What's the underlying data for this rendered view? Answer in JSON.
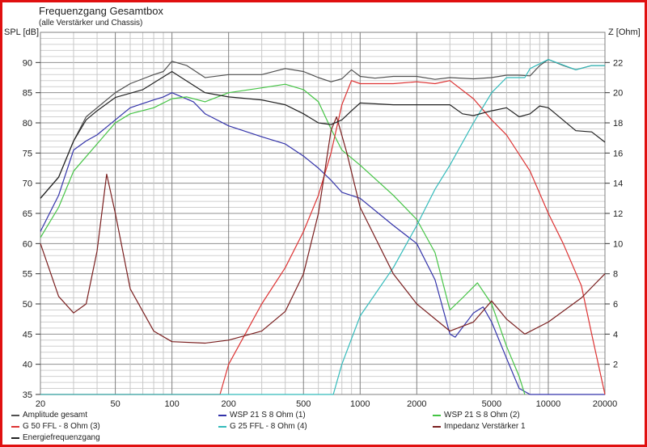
{
  "title": "Frequenzgang Gesamtbox",
  "subtitle": "(alle Verstärker und Chassis)",
  "chart_data": {
    "type": "line",
    "title": "Frequenzgang Gesamtbox",
    "subtitle": "(alle Verstärker und Chassis)",
    "xlabel": "",
    "ylabel": "SPL [dB]",
    "y2label": "Z [Ohm]",
    "xscale": "log",
    "xlim": [
      20,
      20000
    ],
    "ylim": [
      35,
      95
    ],
    "y2lim": [
      0,
      24
    ],
    "xticks": [
      20,
      50,
      100,
      200,
      500,
      1000,
      2000,
      5000,
      10000,
      20000
    ],
    "yticks": [
      35,
      40,
      45,
      50,
      55,
      60,
      65,
      70,
      75,
      80,
      85,
      90
    ],
    "y2ticks": [
      2,
      4,
      6,
      8,
      10,
      12,
      14,
      16,
      18,
      20,
      22
    ],
    "grid": true,
    "legend_position": "bottom",
    "series": [
      {
        "name": "Amplitude gesamt",
        "color": "#505050",
        "axis": "left",
        "points": [
          [
            20,
            67.5
          ],
          [
            25,
            71
          ],
          [
            30,
            77
          ],
          [
            35,
            81
          ],
          [
            40,
            82.5
          ],
          [
            50,
            85
          ],
          [
            60,
            86.5
          ],
          [
            70,
            87.3
          ],
          [
            80,
            88
          ],
          [
            90,
            88.5
          ],
          [
            100,
            90.2
          ],
          [
            120,
            89.5
          ],
          [
            150,
            87.5
          ],
          [
            200,
            88
          ],
          [
            300,
            88
          ],
          [
            400,
            89
          ],
          [
            500,
            88.5
          ],
          [
            600,
            87.5
          ],
          [
            700,
            86.8
          ],
          [
            800,
            87.3
          ],
          [
            900,
            88.8
          ],
          [
            1000,
            87.7
          ],
          [
            1200,
            87.4
          ],
          [
            1500,
            87.7
          ],
          [
            2000,
            87.7
          ],
          [
            2500,
            87.2
          ],
          [
            3000,
            87.5
          ],
          [
            4000,
            87.3
          ],
          [
            5000,
            87.5
          ],
          [
            6000,
            87.9
          ],
          [
            7000,
            87.9
          ],
          [
            8000,
            87.8
          ],
          [
            9000,
            89.5
          ],
          [
            10000,
            90.5
          ],
          [
            12000,
            89.5
          ],
          [
            14000,
            88.8
          ],
          [
            17000,
            89.5
          ],
          [
            20000,
            89.5
          ]
        ]
      },
      {
        "name": "WSP 21 S 8 Ohm (1)",
        "color": "#3333aa",
        "axis": "left",
        "points": [
          [
            20,
            62
          ],
          [
            25,
            68
          ],
          [
            30,
            75.5
          ],
          [
            35,
            77
          ],
          [
            40,
            78
          ],
          [
            50,
            80.5
          ],
          [
            60,
            82.5
          ],
          [
            70,
            83.2
          ],
          [
            80,
            83.8
          ],
          [
            90,
            84.3
          ],
          [
            100,
            85
          ],
          [
            130,
            83.5
          ],
          [
            150,
            81.5
          ],
          [
            200,
            79.5
          ],
          [
            300,
            77.7
          ],
          [
            400,
            76.5
          ],
          [
            500,
            74.5
          ],
          [
            600,
            72.5
          ],
          [
            700,
            70.5
          ],
          [
            800,
            68.5
          ],
          [
            1000,
            67.5
          ],
          [
            1500,
            63
          ],
          [
            2000,
            60
          ],
          [
            2500,
            54
          ],
          [
            3000,
            45
          ],
          [
            3200,
            44.5
          ],
          [
            4000,
            48.5
          ],
          [
            4500,
            49.5
          ],
          [
            5000,
            47
          ],
          [
            6000,
            41
          ],
          [
            7000,
            36
          ],
          [
            8000,
            35
          ],
          [
            20000,
            35
          ]
        ]
      },
      {
        "name": "WSP 21 S 8 Ohm (2)",
        "color": "#44c444",
        "axis": "left",
        "points": [
          [
            20,
            61
          ],
          [
            25,
            66
          ],
          [
            30,
            72
          ],
          [
            40,
            76.5
          ],
          [
            50,
            80
          ],
          [
            60,
            81.5
          ],
          [
            80,
            82.5
          ],
          [
            100,
            84
          ],
          [
            120,
            84.3
          ],
          [
            150,
            83.5
          ],
          [
            200,
            85
          ],
          [
            300,
            85.8
          ],
          [
            400,
            86.4
          ],
          [
            500,
            85.5
          ],
          [
            600,
            83.5
          ],
          [
            700,
            79
          ],
          [
            800,
            75.5
          ],
          [
            1000,
            73
          ],
          [
            1500,
            68
          ],
          [
            2000,
            64
          ],
          [
            2500,
            58.5
          ],
          [
            3000,
            49
          ],
          [
            3500,
            51
          ],
          [
            4200,
            53.5
          ],
          [
            5000,
            50
          ],
          [
            6000,
            43
          ],
          [
            7000,
            38
          ],
          [
            7500,
            35
          ]
        ]
      },
      {
        "name": "G 50 FFL - 8 Ohm (3)",
        "color": "#dd3333",
        "axis": "left",
        "points": [
          [
            20,
            35
          ],
          [
            180,
            35
          ],
          [
            200,
            40
          ],
          [
            300,
            50
          ],
          [
            400,
            56
          ],
          [
            500,
            62
          ],
          [
            600,
            68
          ],
          [
            700,
            75
          ],
          [
            800,
            83
          ],
          [
            900,
            87
          ],
          [
            1000,
            86.5
          ],
          [
            1500,
            86.5
          ],
          [
            2000,
            86.8
          ],
          [
            2500,
            86.5
          ],
          [
            3000,
            87
          ],
          [
            4000,
            84
          ],
          [
            5000,
            80.5
          ],
          [
            6000,
            78
          ],
          [
            8000,
            72
          ],
          [
            10000,
            65
          ],
          [
            12000,
            60
          ],
          [
            15000,
            53
          ],
          [
            17000,
            45
          ],
          [
            20000,
            35
          ]
        ]
      },
      {
        "name": "G 25 FFL - 8 Ohm (4)",
        "color": "#33bbbb",
        "axis": "left",
        "points": [
          [
            20,
            35
          ],
          [
            720,
            35
          ],
          [
            800,
            40
          ],
          [
            1000,
            48
          ],
          [
            1500,
            56
          ],
          [
            2000,
            63
          ],
          [
            2500,
            69
          ],
          [
            3000,
            73
          ],
          [
            4000,
            80
          ],
          [
            5000,
            85
          ],
          [
            6000,
            87.5
          ],
          [
            7500,
            87.5
          ],
          [
            8000,
            89
          ],
          [
            10000,
            90.5
          ],
          [
            14000,
            88.8
          ],
          [
            17000,
            89.5
          ],
          [
            20000,
            89.5
          ]
        ]
      },
      {
        "name": "Impedanz Verstärker 1",
        "color": "#7a1f1f",
        "axis": "right",
        "points": [
          [
            20,
            10
          ],
          [
            25,
            6.5
          ],
          [
            30,
            5.4
          ],
          [
            35,
            6
          ],
          [
            40,
            9.5
          ],
          [
            45,
            14.6
          ],
          [
            50,
            12
          ],
          [
            60,
            7
          ],
          [
            80,
            4.2
          ],
          [
            100,
            3.5
          ],
          [
            150,
            3.4
          ],
          [
            200,
            3.6
          ],
          [
            300,
            4.2
          ],
          [
            400,
            5.5
          ],
          [
            500,
            8
          ],
          [
            600,
            12
          ],
          [
            700,
            17.5
          ],
          [
            750,
            18.4
          ],
          [
            850,
            16
          ],
          [
            1000,
            12.4
          ],
          [
            1500,
            8
          ],
          [
            2000,
            6
          ],
          [
            3000,
            4.2
          ],
          [
            4000,
            4.8
          ],
          [
            5000,
            6.2
          ],
          [
            6000,
            5
          ],
          [
            7500,
            4
          ],
          [
            10000,
            4.8
          ],
          [
            15000,
            6.4
          ],
          [
            20000,
            8
          ]
        ]
      },
      {
        "name": "Energiefrequenzgang",
        "color": "#222222",
        "axis": "left",
        "points": [
          [
            20,
            67.5
          ],
          [
            25,
            71
          ],
          [
            30,
            77
          ],
          [
            35,
            80.5
          ],
          [
            40,
            82
          ],
          [
            50,
            84.2
          ],
          [
            70,
            85.5
          ],
          [
            100,
            88.5
          ],
          [
            150,
            85
          ],
          [
            200,
            84.3
          ],
          [
            300,
            83.8
          ],
          [
            400,
            83
          ],
          [
            500,
            81.5
          ],
          [
            600,
            80
          ],
          [
            700,
            79.7
          ],
          [
            800,
            80.5
          ],
          [
            900,
            82
          ],
          [
            1000,
            83.3
          ],
          [
            1500,
            83
          ],
          [
            2000,
            83
          ],
          [
            3000,
            83
          ],
          [
            3500,
            81.5
          ],
          [
            4000,
            81.2
          ],
          [
            5000,
            82
          ],
          [
            6000,
            82.5
          ],
          [
            7000,
            81
          ],
          [
            8000,
            81.5
          ],
          [
            9000,
            82.8
          ],
          [
            10000,
            82.5
          ],
          [
            14000,
            78.7
          ],
          [
            17000,
            78.5
          ],
          [
            20000,
            76.8
          ]
        ]
      }
    ]
  }
}
